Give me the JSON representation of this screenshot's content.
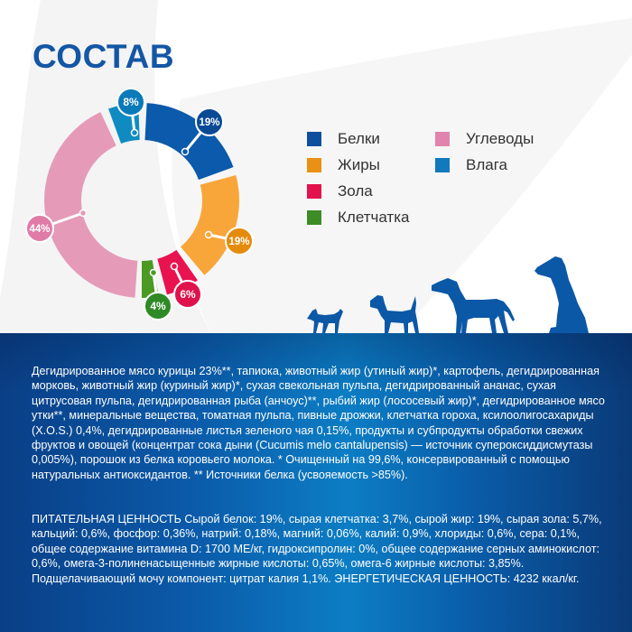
{
  "title": "СОСТАВ",
  "chart_data": {
    "type": "pie",
    "subtype": "donut",
    "title": "СОСТАВ",
    "categories": [
      "Белки",
      "Жиры",
      "Зола",
      "Клетчатка",
      "Углеводы",
      "Влага"
    ],
    "values": [
      19,
      19,
      6,
      4,
      44,
      8
    ],
    "unit": "%",
    "labels": [
      "19%",
      "19%",
      "6%",
      "4%",
      "44%",
      "8%"
    ],
    "colors": [
      "#0b5aab",
      "#f8a63a",
      "#e8134f",
      "#4a9a24",
      "#e59bb8",
      "#0f8bc2"
    ],
    "label_colors": [
      "#0a4a95",
      "#e48b0c",
      "#e0124c",
      "#2e8a25",
      "#e07aa6",
      "#0a7ab8"
    ],
    "legend_position": "right"
  },
  "legend": {
    "items": [
      {
        "label": "Белки",
        "color": "#0d4f9e"
      },
      {
        "label": "Жиры",
        "color": "#e99115"
      },
      {
        "label": "Зола",
        "color": "#e4124c"
      },
      {
        "label": "Клетчатка",
        "color": "#3d8c25"
      },
      {
        "label": "Углеводы",
        "color": "#e283ad"
      },
      {
        "label": "Влага",
        "color": "#1279bd"
      }
    ]
  },
  "illustration": {
    "dogs": [
      "small-dog-icon",
      "terrier-dog-icon",
      "pointer-dog-icon",
      "great-dane-dog-icon"
    ],
    "color": "#0b58a6"
  },
  "composition_text": "Дегидрированное мясо курицы 23%**, тапиока, животный жир (утиный жир)*, картофель, дегидрированная морковь, животный жир (куриный жир)*, сухая свекольная пульпа, дегидрированный ананас, сухая цитрусовая пульпа, дегидрированная рыба (анчоус)**, рыбий жир (лососевый жир)*, дегидрированное мясо утки**, минеральные вещества, томатная пульпа, пивные дрожжи, клетчатка гороха, ксилоолигосахариды (X.O.S.) 0,4%, дегидрированные листья зеленого чая 0,15%, продукты и субпродукты обработки свежих фруктов и овощей (концентрат сока дыни (Cucumis melo cantalupensis) — источник супероксиддисмутазы 0,005%), порошок из белка коровьего молока. * Очищенный на 99,6%, консервированный с помощью натуральных антиоксидантов. ** Источники белка (усвояемость >85%).",
  "nutrition_text": "ПИТАТЕЛЬНАЯ ЦЕННОСТЬ Сырой белок: 19%, сырая клетчатка: 3,7%, сырой жир: 19%, сырая зола: 5,7%, кальций: 0,6%, фосфор: 0,36%, натрий: 0,18%, магний: 0,06%, калий: 0,9%, хлориды: 0,6%, сера: 0,1%, общее содержание витамина D: 1700 МЕ/кг, гидроксипролин: 0%, общее содержание серных аминокислот: 0,6%, омега-3-полиненасыщенные жирные кислоты: 0,65%, омега-6 жирные кислоты: 3,85%. Подщелачивающий мочу компонент: цитрат калия 1,1%. ЭНЕРГЕТИЧЕСКАЯ ЦЕННОСТЬ: 4232 ккал/кг."
}
